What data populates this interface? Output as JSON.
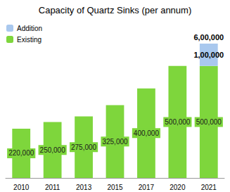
{
  "chart_data": {
    "type": "bar",
    "title": "Capacity of Quartz Sinks (per annum)",
    "categories": [
      "2010",
      "2011",
      "2013",
      "2015",
      "2017",
      "2020",
      "2021"
    ],
    "series": [
      {
        "name": "Existing",
        "color": "#7ed63c",
        "values": [
          220000,
          250000,
          275000,
          325000,
          400000,
          500000,
          500000
        ],
        "value_labels": [
          "220,000",
          "250,000",
          "275,000",
          "325,000",
          "400,000",
          "500,000",
          "500,000"
        ]
      },
      {
        "name": "Addition",
        "color": "#a9c8ee",
        "values": [
          null,
          null,
          null,
          null,
          null,
          null,
          100000
        ],
        "value_labels": [
          null,
          null,
          null,
          null,
          null,
          null,
          "1,00,000"
        ]
      }
    ],
    "annotations": [
      {
        "text": "6,00,000",
        "x": "2021",
        "y": 600000
      }
    ],
    "ylim": [
      0,
      600000
    ],
    "yticks": [
      0,
      600000
    ],
    "stacked": true,
    "data_labels": true,
    "grid": false,
    "legend": "upper left",
    "tick_labels": "x"
  }
}
